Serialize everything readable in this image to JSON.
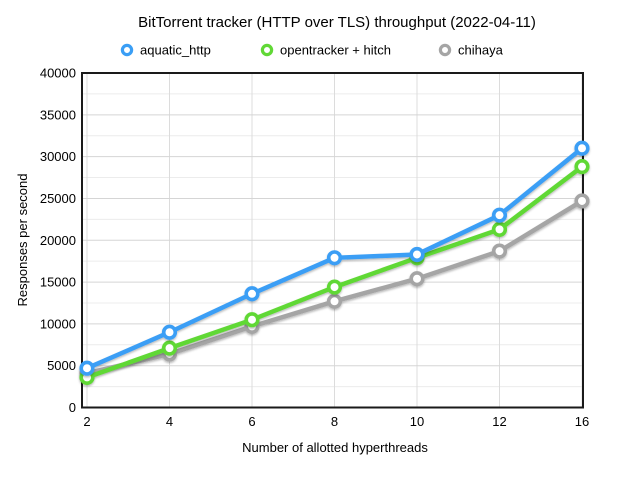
{
  "title": "BitTorrent tracker (HTTP over TLS) throughput (2022-04-11)",
  "legend": [
    {
      "label": "aquatic_http",
      "color": "#3A9EF5"
    },
    {
      "label": "opentracker + hitch",
      "color": "#61D836"
    },
    {
      "label": "chihaya",
      "color": "#A5A5A5"
    }
  ],
  "chart_data": {
    "type": "line",
    "title": "BitTorrent tracker (HTTP over TLS) throughput (2022-04-11)",
    "xlabel": "Number of allotted hyperthreads",
    "ylabel": "Responses per second",
    "categories": [
      "2",
      "4",
      "6",
      "8",
      "10",
      "12",
      "16"
    ],
    "series": [
      {
        "name": "chihaya",
        "color": "#A5A5A5",
        "values": [
          4100,
          6400,
          9700,
          12700,
          15400,
          18700,
          24700
        ]
      },
      {
        "name": "opentracker + hitch",
        "color": "#61D836",
        "values": [
          3600,
          7100,
          10500,
          14400,
          17900,
          21300,
          28800
        ]
      },
      {
        "name": "aquatic_http",
        "color": "#3A9EF5",
        "values": [
          4700,
          9000,
          13600,
          17900,
          18300,
          23000,
          31000
        ]
      }
    ],
    "ylim": [
      0,
      40000
    ],
    "yticks": [
      0,
      5000,
      10000,
      15000,
      20000,
      25000,
      30000,
      35000,
      40000
    ],
    "ytick_minor_step": 2500,
    "grid": "on",
    "legend_position": "top",
    "colors": {
      "axis_frame": "#1a1a1a",
      "grid_major": "#d5d5d5",
      "grid_minor": "#ececec",
      "grid_vertical": "#dcdcdc"
    }
  }
}
